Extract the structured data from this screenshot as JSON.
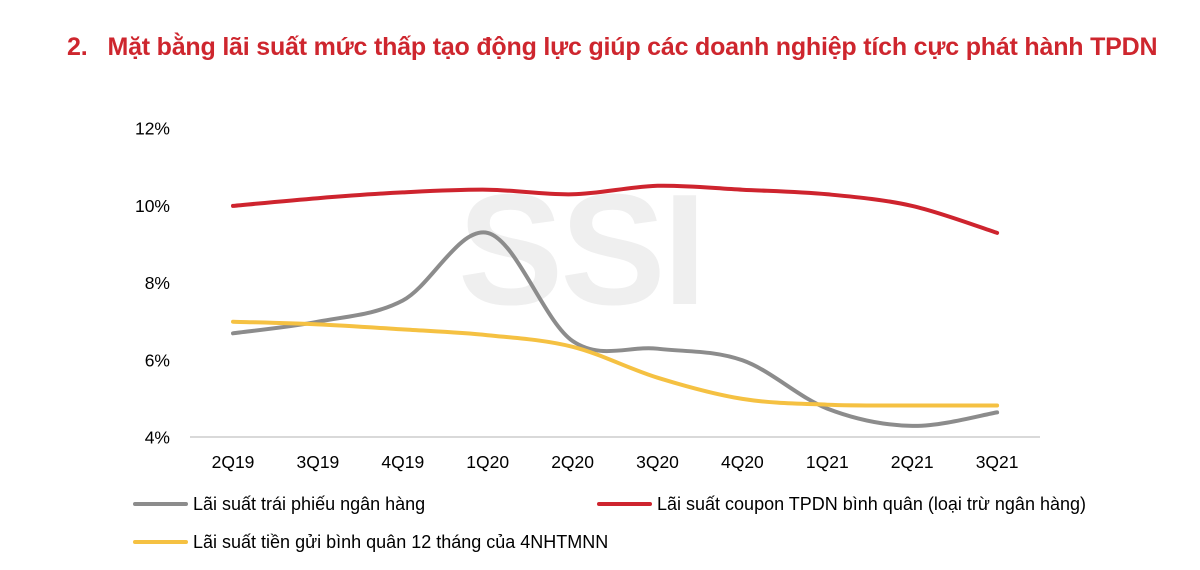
{
  "header": {
    "number": "2.",
    "title": "Mặt bằng lãi suất mức thấp tạo động lực giúp các doanh nghiệp tích cực phát hành TPDN"
  },
  "watermark": "SSI",
  "colors": {
    "title_red": "#CE262E",
    "axis_line": "#D9D9D9",
    "tick_text": "#000000",
    "watermark": "#EFEFEF"
  },
  "chart_data": {
    "type": "line",
    "title": "",
    "xlabel": "",
    "ylabel": "",
    "ylim": [
      4,
      12
    ],
    "grid": false,
    "legend_position": "bottom",
    "categories": [
      "2Q19",
      "3Q19",
      "4Q19",
      "1Q20",
      "2Q20",
      "3Q20",
      "4Q20",
      "1Q21",
      "2Q21",
      "3Q21"
    ],
    "yticks": [
      {
        "value": 12,
        "label": "12%"
      },
      {
        "value": 10,
        "label": "10%"
      },
      {
        "value": 8,
        "label": "8%"
      },
      {
        "value": 6,
        "label": "6%"
      },
      {
        "value": 4,
        "label": "4%"
      }
    ],
    "series": [
      {
        "name": "Lãi suất trái phiếu ngân hàng",
        "color": "#8C8C8C",
        "values": [
          6.7,
          7.0,
          7.55,
          9.3,
          6.5,
          6.3,
          6.0,
          4.75,
          4.3,
          4.65
        ]
      },
      {
        "name": "Lãi suất coupon TPDN bình quân (loại trừ ngân hàng)",
        "color": "#CE242E",
        "values": [
          10.0,
          10.2,
          10.35,
          10.42,
          10.3,
          10.52,
          10.42,
          10.3,
          10.0,
          9.3
        ]
      },
      {
        "name": "Lãi suất tiền gửi bình quân 12 tháng của 4NHTMNN",
        "color": "#F5C142",
        "values": [
          7.0,
          6.93,
          6.8,
          6.65,
          6.35,
          5.55,
          5.0,
          4.85,
          4.83,
          4.83
        ]
      }
    ]
  },
  "legend": {
    "rows": "series 0 left / series 1 right on row one, series 2 on row two"
  }
}
